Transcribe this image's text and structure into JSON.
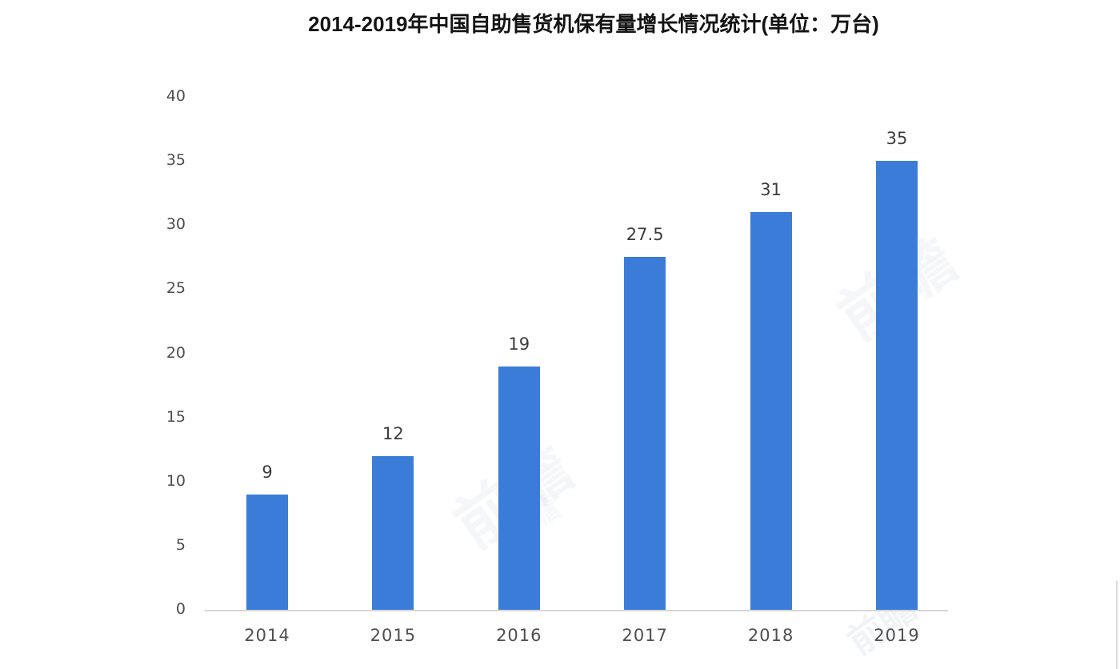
{
  "chart_data": {
    "type": "bar",
    "title": "2014-2019年中国自助售货机保有量增长情况统计(单位：万台)",
    "categories": [
      "2014",
      "2015",
      "2016",
      "2017",
      "2018",
      "2019"
    ],
    "values": [
      9,
      12,
      19,
      27.5,
      31,
      35
    ],
    "value_labels": [
      "9",
      "12",
      "19",
      "27.5",
      "31",
      "35"
    ],
    "xlabel": "",
    "ylabel": "",
    "ylim": [
      0,
      40
    ],
    "yticks": [
      0,
      5,
      10,
      15,
      20,
      25,
      30,
      35,
      40
    ],
    "grid": false,
    "legend_position": "none",
    "bar_color": "#3b7cd9",
    "axis_line_color": "#d6d6d6",
    "tick_label_color": "#4d4d4d",
    "value_label_color": "#3d3d3d",
    "title_color": "#141414"
  },
  "watermark": {
    "text": "前瞻"
  }
}
